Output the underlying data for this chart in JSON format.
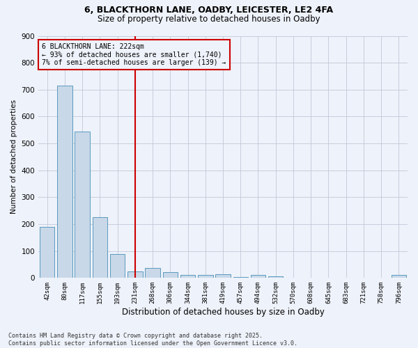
{
  "title_line1": "6, BLACKTHORN LANE, OADBY, LEICESTER, LE2 4FA",
  "title_line2": "Size of property relative to detached houses in Oadby",
  "xlabel": "Distribution of detached houses by size in Oadby",
  "ylabel": "Number of detached properties",
  "bar_color": "#c8d8e8",
  "bar_edge_color": "#5a9abf",
  "background_color": "#eef2fa",
  "grid_color": "#c0c8d8",
  "vline_color": "#cc0000",
  "annotation_text": "6 BLACKTHORN LANE: 222sqm\n← 93% of detached houses are smaller (1,740)\n7% of semi-detached houses are larger (139) →",
  "categories": [
    "42sqm",
    "80sqm",
    "117sqm",
    "155sqm",
    "193sqm",
    "231sqm",
    "268sqm",
    "306sqm",
    "344sqm",
    "381sqm",
    "419sqm",
    "457sqm",
    "494sqm",
    "532sqm",
    "570sqm",
    "608sqm",
    "645sqm",
    "683sqm",
    "721sqm",
    "758sqm",
    "796sqm"
  ],
  "values": [
    190,
    715,
    545,
    225,
    90,
    25,
    37,
    22,
    12,
    12,
    13,
    4,
    10,
    7,
    0,
    0,
    0,
    0,
    0,
    0,
    10
  ],
  "ylim": [
    0,
    900
  ],
  "yticks": [
    0,
    100,
    200,
    300,
    400,
    500,
    600,
    700,
    800,
    900
  ],
  "footnote": "Contains HM Land Registry data © Crown copyright and database right 2025.\nContains public sector information licensed under the Open Government Licence v3.0.",
  "bar_width": 0.85
}
